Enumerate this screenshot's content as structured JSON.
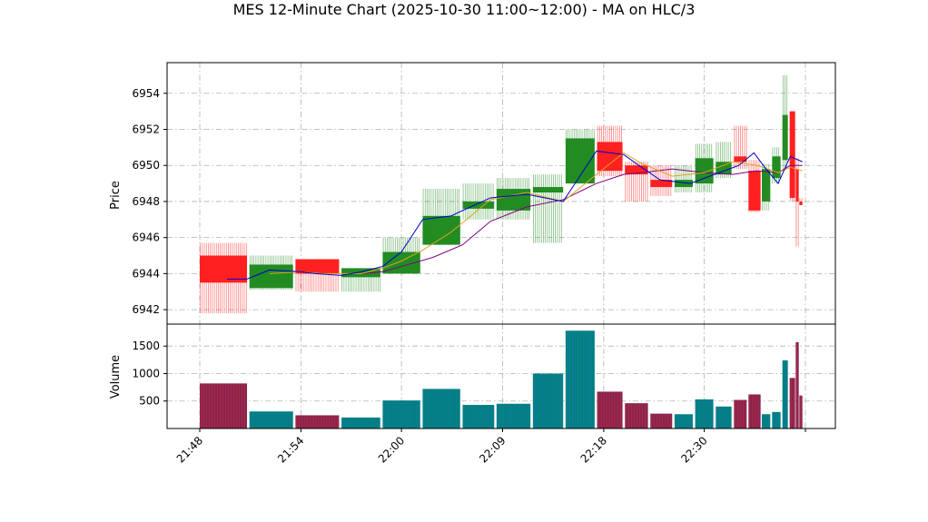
{
  "chart_data": {
    "type": "candlestick",
    "title": "MES 12-Minute Chart (2025-10-30 11:00~12:00) - MA on HLC/3",
    "price_panel": {
      "ylabel": "Price",
      "ylim": [
        6941.2,
        6955.7
      ],
      "yticks": [
        6942,
        6944,
        6946,
        6948,
        6950,
        6952,
        6954
      ]
    },
    "volume_panel": {
      "ylabel": "Volume",
      "ylim": [
        0,
        1900
      ],
      "yticks": [
        500,
        1000,
        1500
      ]
    },
    "xlim": [
      0,
      100
    ],
    "xticks": [
      {
        "x": 0,
        "label": "21:48"
      },
      {
        "x": 16.7,
        "label": "21:54"
      },
      {
        "x": 33.3,
        "label": "22:00"
      },
      {
        "x": 50,
        "label": "22:09"
      },
      {
        "x": 66.7,
        "label": "22:18"
      },
      {
        "x": 83.3,
        "label": "22:30"
      },
      {
        "x": 100,
        "label": ""
      }
    ],
    "colors": {
      "up": "#228B22",
      "down": "#FF2020",
      "volume_up": "#008080",
      "volume_down": "#8B2252",
      "ma_fast": "#0000CC",
      "ma_mid": "#DAA520",
      "ma_slow": "#800080",
      "grid": "#b0b0b0"
    },
    "candles": [
      {
        "x0": 0,
        "x1": 7.8,
        "open": 6945.0,
        "close": 6943.5,
        "high": 6945.7,
        "low": 6941.8,
        "volume": 820
      },
      {
        "x0": 8.2,
        "x1": 15.4,
        "open": 6943.2,
        "close": 6944.5,
        "high": 6945.0,
        "low": 6943.1,
        "volume": 310
      },
      {
        "x0": 15.8,
        "x1": 23.0,
        "open": 6944.8,
        "close": 6944.0,
        "high": 6944.8,
        "low": 6943.0,
        "volume": 240
      },
      {
        "x0": 23.4,
        "x1": 29.8,
        "open": 6943.8,
        "close": 6944.3,
        "high": 6944.3,
        "low": 6943.0,
        "volume": 200
      },
      {
        "x0": 30.2,
        "x1": 36.4,
        "open": 6944.0,
        "close": 6945.2,
        "high": 6946.0,
        "low": 6944.0,
        "volume": 510
      },
      {
        "x0": 36.8,
        "x1": 43.0,
        "open": 6945.6,
        "close": 6947.2,
        "high": 6948.7,
        "low": 6945.6,
        "volume": 720
      },
      {
        "x0": 43.4,
        "x1": 48.6,
        "open": 6947.6,
        "close": 6948.0,
        "high": 6949.0,
        "low": 6947.0,
        "volume": 430
      },
      {
        "x0": 49.0,
        "x1": 54.6,
        "open": 6947.5,
        "close": 6948.7,
        "high": 6949.3,
        "low": 6947.0,
        "volume": 450
      },
      {
        "x0": 55.0,
        "x1": 60.0,
        "open": 6948.5,
        "close": 6948.8,
        "high": 6949.5,
        "low": 6945.7,
        "volume": 1000
      },
      {
        "x0": 60.4,
        "x1": 65.2,
        "open": 6949.0,
        "close": 6951.5,
        "high": 6952.0,
        "low": 6949.0,
        "volume": 1780
      },
      {
        "x0": 65.6,
        "x1": 69.8,
        "open": 6951.3,
        "close": 6949.7,
        "high": 6952.2,
        "low": 6949.4,
        "volume": 670
      },
      {
        "x0": 70.2,
        "x1": 74.0,
        "open": 6950.0,
        "close": 6949.5,
        "high": 6950.2,
        "low": 6948.0,
        "volume": 460
      },
      {
        "x0": 74.4,
        "x1": 78.0,
        "open": 6949.2,
        "close": 6948.8,
        "high": 6950.0,
        "low": 6948.3,
        "volume": 270
      },
      {
        "x0": 78.4,
        "x1": 81.4,
        "open": 6948.8,
        "close": 6949.2,
        "high": 6950.0,
        "low": 6948.5,
        "volume": 260
      },
      {
        "x0": 81.8,
        "x1": 84.8,
        "open": 6949.0,
        "close": 6950.4,
        "high": 6951.2,
        "low": 6948.5,
        "volume": 530
      },
      {
        "x0": 85.2,
        "x1": 87.8,
        "open": 6949.5,
        "close": 6950.2,
        "high": 6951.3,
        "low": 6949.3,
        "volume": 400
      },
      {
        "x0": 88.2,
        "x1": 90.3,
        "open": 6950.5,
        "close": 6950.2,
        "high": 6952.2,
        "low": 6949.8,
        "volume": 520
      },
      {
        "x0": 90.6,
        "x1": 92.6,
        "open": 6949.7,
        "close": 6947.5,
        "high": 6950.3,
        "low": 6947.4,
        "volume": 620
      },
      {
        "x0": 92.8,
        "x1": 94.2,
        "open": 6948.0,
        "close": 6949.8,
        "high": 6950.1,
        "low": 6947.5,
        "volume": 260
      },
      {
        "x0": 94.5,
        "x1": 95.9,
        "open": 6949.3,
        "close": 6950.5,
        "high": 6951.0,
        "low": 6949.0,
        "volume": 300
      },
      {
        "x0": 96.2,
        "x1": 97.1,
        "open": 6950.3,
        "close": 6952.8,
        "high": 6955.0,
        "low": 6949.8,
        "volume": 1240
      },
      {
        "x0": 97.4,
        "x1": 98.3,
        "open": 6953.0,
        "close": 6948.2,
        "high": 6953.0,
        "low": 6948.0,
        "volume": 920
      },
      {
        "x0": 98.4,
        "x1": 98.9,
        "open": 6949.8,
        "close": 6948.0,
        "high": 6950.4,
        "low": 6945.5,
        "volume": 1570
      },
      {
        "x0": 99.0,
        "x1": 99.5,
        "open": 6948.0,
        "close": 6947.8,
        "high": 6948.2,
        "low": 6947.8,
        "volume": 600
      }
    ],
    "ma_fast": {
      "x": [
        4.5,
        7.8,
        11.5,
        16.7,
        19.0,
        23.4,
        26.7,
        30.2,
        33.3,
        36.8,
        41.5,
        43.4,
        48.0,
        54.0,
        60.0,
        65.5,
        70.0,
        72.5,
        76.0,
        81.0,
        85.0,
        89.0,
        91.5,
        93.5,
        95.5,
        97.5,
        99.5
      ],
      "y": [
        6943.7,
        6943.7,
        6944.2,
        6944.1,
        6944.0,
        6943.9,
        6944.1,
        6944.4,
        6945.2,
        6947.0,
        6947.2,
        6947.5,
        6948.2,
        6948.4,
        6948.0,
        6950.8,
        6950.6,
        6950.0,
        6949.2,
        6949.0,
        6949.5,
        6950.0,
        6950.7,
        6949.8,
        6949.0,
        6950.5,
        6950.2
      ]
    },
    "ma_mid": {
      "x": [
        11.5,
        16.7,
        20.0,
        23.4,
        26.7,
        30.2,
        33.3,
        36.8,
        41.5,
        48.0,
        54.0,
        60.0,
        65.5,
        70.0,
        73.0,
        78.0,
        83.3,
        88.0,
        92.0,
        95.5,
        97.5,
        99.5
      ],
      "y": [
        6944.0,
        6944.1,
        6944.0,
        6944.0,
        6944.0,
        6944.3,
        6944.7,
        6945.3,
        6946.3,
        6948.1,
        6948.5,
        6948.0,
        6949.5,
        6950.7,
        6950.1,
        6949.4,
        6949.6,
        6950.2,
        6950.0,
        6949.6,
        6949.9,
        6949.7
      ]
    },
    "ma_slow": {
      "x": [
        26.7,
        30.2,
        33.3,
        38.5,
        43.4,
        48.0,
        54.0,
        60.0,
        65.5,
        70.0,
        73.0,
        78.0,
        83.3,
        88.0,
        92.0,
        95.5,
        97.5,
        99.5
      ],
      "y": [
        6944.0,
        6944.1,
        6944.4,
        6944.9,
        6945.6,
        6946.9,
        6947.7,
        6948.1,
        6949.0,
        6949.5,
        6949.6,
        6949.8,
        6949.6,
        6949.5,
        6949.7,
        6949.6,
        6950.0,
        6950.0
      ]
    }
  }
}
